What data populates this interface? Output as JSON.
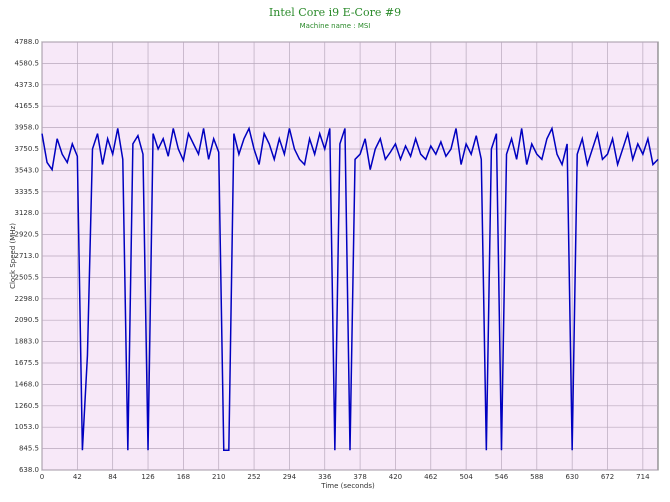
{
  "chart_data": {
    "type": "line",
    "title": "Intel Core i9 E-Core #9",
    "subtitle": "Machine name : MSI",
    "x_label": "Time (seconds)",
    "y_label": "Clock Speed (MHz)",
    "x": [
      0,
      6,
      12,
      18,
      24,
      30,
      36,
      42,
      48,
      54,
      60,
      66,
      72,
      78,
      84,
      90,
      96,
      102,
      108,
      114,
      120,
      126,
      132,
      138,
      144,
      150,
      156,
      162,
      168,
      174,
      180,
      186,
      192,
      198,
      204,
      210,
      216,
      222,
      228,
      234,
      240,
      246,
      252,
      258,
      264,
      270,
      276,
      282,
      288,
      294,
      300,
      306,
      312,
      318,
      324,
      330,
      336,
      342,
      348,
      354,
      360,
      366,
      372,
      378,
      384,
      390,
      396,
      402,
      408,
      414,
      420,
      426,
      432,
      438,
      444,
      450,
      456,
      462,
      468,
      474,
      480,
      486,
      492,
      498,
      504,
      510,
      516,
      522,
      528,
      534,
      540,
      546,
      552,
      558,
      564,
      570,
      576,
      582,
      588,
      594,
      600,
      606,
      612,
      618,
      624,
      630,
      636,
      642,
      648,
      654,
      660,
      666,
      672,
      678,
      684,
      690,
      696,
      702,
      708,
      714,
      720,
      726,
      732
    ],
    "series": [
      {
        "name": "Clock Speed",
        "color": "#0000c0",
        "values": [
          3900,
          3620,
          3550,
          3850,
          3700,
          3620,
          3800,
          3680,
          830,
          1750,
          3750,
          3900,
          3600,
          3850,
          3700,
          3950,
          3650,
          830,
          3800,
          3880,
          3700,
          830,
          3900,
          3750,
          3850,
          3680,
          3950,
          3750,
          3640,
          3900,
          3800,
          3700,
          3950,
          3650,
          3850,
          3720,
          830,
          830,
          3900,
          3700,
          3850,
          3950,
          3750,
          3600,
          3900,
          3800,
          3650,
          3850,
          3700,
          3950,
          3750,
          3650,
          3600,
          3850,
          3700,
          3900,
          3750,
          3950,
          830,
          3800,
          3950,
          830,
          3650,
          3700,
          3850,
          3550,
          3750,
          3850,
          3650,
          3720,
          3800,
          3650,
          3780,
          3680,
          3850,
          3700,
          3650,
          3780,
          3700,
          3820,
          3680,
          3750,
          3950,
          3600,
          3800,
          3700,
          3880,
          3650,
          830,
          3750,
          3900,
          830,
          3700,
          3850,
          3650,
          3950,
          3600,
          3800,
          3700,
          3650,
          3850,
          3950,
          3700,
          3600,
          3800,
          830,
          3700,
          3850,
          3600,
          3750,
          3900,
          3650,
          3700,
          3850,
          3600,
          3750,
          3900,
          3650,
          3800,
          3700,
          3850,
          3600,
          3650
        ]
      }
    ],
    "xlim": [
      0,
      732
    ],
    "xticks": [
      0,
      42,
      84,
      126,
      168,
      210,
      252,
      294,
      336,
      378,
      420,
      462,
      504,
      546,
      588,
      630,
      672,
      714
    ],
    "ylim": [
      638,
      4788
    ],
    "yticks": [
      {
        "value": 638,
        "label": "638.0"
      },
      845.5,
      {
        "value": 1053,
        "label": "1053.0"
      },
      1260.5,
      {
        "value": 1468,
        "label": "1468.0"
      },
      1675.5,
      {
        "value": 1883,
        "label": "1883.0"
      },
      2090.5,
      {
        "value": 2298,
        "label": "2298.0"
      },
      2505.5,
      {
        "value": 2713,
        "label": "2713.0"
      },
      2920.5,
      {
        "value": 3128,
        "label": "3128.0"
      },
      3335.5,
      {
        "value": 3543,
        "label": "3543.0"
      },
      3750.5,
      {
        "value": 3958,
        "label": "3958.0"
      },
      4165.5,
      {
        "value": 4373,
        "label": "4373.0"
      },
      4580.5,
      {
        "value": 4788,
        "label": "4788.0"
      }
    ],
    "grid": true
  }
}
